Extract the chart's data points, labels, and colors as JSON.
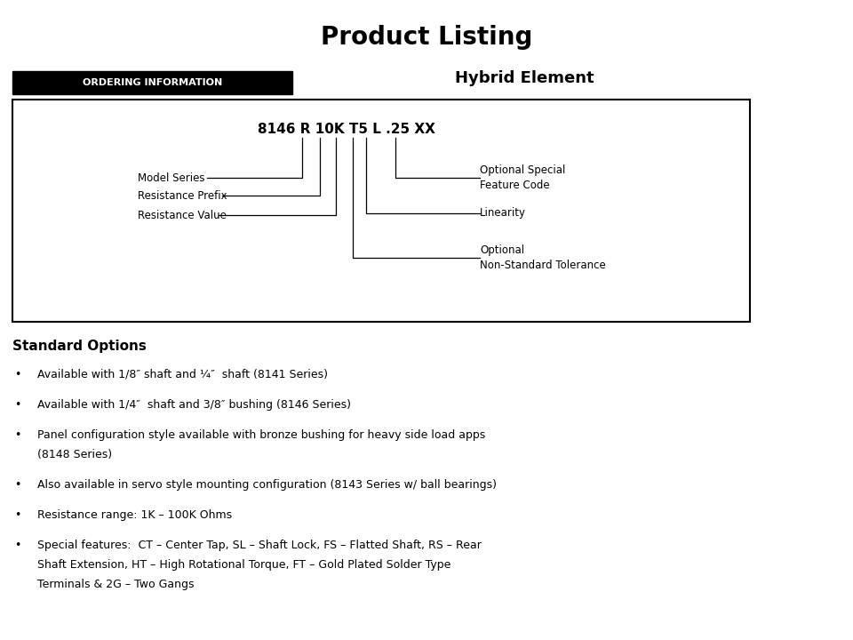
{
  "title": "Product Listing",
  "title_fontsize": 18,
  "hybrid_element_label": "Hybrid Element",
  "ordering_info_label": "ORDERING INFORMATION",
  "part_number": "8146 R 10K T5 L .25 XX",
  "standard_options_title": "Standard Options",
  "bullet_items": [
    "Available with 1/8″ shaft and ¼″  shaft (8141 Series)",
    "Available with 1/4″  shaft and 3/8″ bushing (8146 Series)",
    "Panel configuration style available with bronze bushing for heavy side load apps\n(8148 Series)",
    "Also available in servo style mounting configuration (8143 Series w/ ball bearings)",
    "Resistance range: 1K – 100K Ohms",
    "Special features:  CT – Center Tap, SL – Shaft Lock, FS – Flatted Shaft, RS – Rear\nShaft Extension, HT – High Rotational Torque, FT – Gold Plated Solder Type\nTerminals & 2G – Two Gangs"
  ],
  "bg_color": "#ffffff",
  "text_color": "#000000",
  "bullet_line_heights": [
    1,
    1,
    2,
    1,
    1,
    3
  ]
}
